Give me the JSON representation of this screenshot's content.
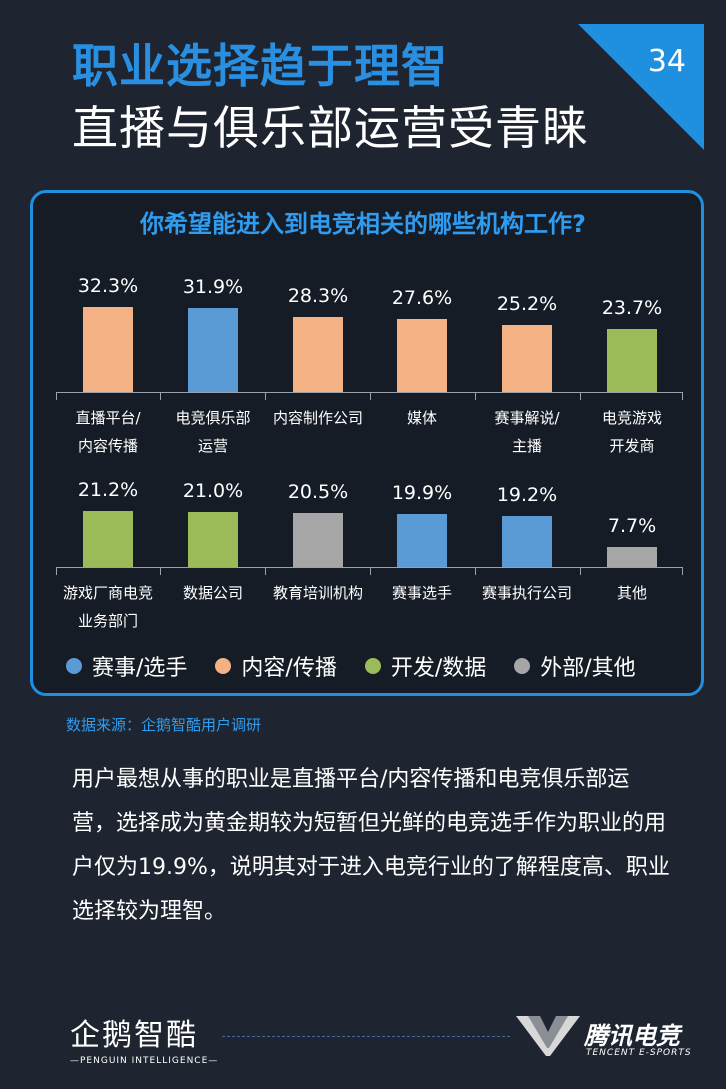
{
  "header": {
    "title_line1": "职业选择趋于理智",
    "title_line2": "直播与俱乐部运营受青睐",
    "page_number": "34"
  },
  "chart_data": {
    "type": "bar",
    "title": "你希望能进入到电竞相关的哪些机构工作?",
    "unit": "%",
    "rows": [
      [
        {
          "label": [
            "直播平台/",
            "内容传播"
          ],
          "value": 32.3,
          "display": "32.3%",
          "group": "内容/传播"
        },
        {
          "label": [
            "电竞俱乐部",
            "运营"
          ],
          "value": 31.9,
          "display": "31.9%",
          "group": "赛事/选手"
        },
        {
          "label": [
            "内容制作公司"
          ],
          "value": 28.3,
          "display": "28.3%",
          "group": "内容/传播"
        },
        {
          "label": [
            "媒体"
          ],
          "value": 27.6,
          "display": "27.6%",
          "group": "内容/传播"
        },
        {
          "label": [
            "赛事解说/",
            "主播"
          ],
          "value": 25.2,
          "display": "25.2%",
          "group": "内容/传播"
        },
        {
          "label": [
            "电竞游戏",
            "开发商"
          ],
          "value": 23.7,
          "display": "23.7%",
          "group": "开发/数据"
        }
      ],
      [
        {
          "label": [
            "游戏厂商电竞",
            "业务部门"
          ],
          "value": 21.2,
          "display": "21.2%",
          "group": "开发/数据"
        },
        {
          "label": [
            "数据公司"
          ],
          "value": 21.0,
          "display": "21.0%",
          "group": "开发/数据"
        },
        {
          "label": [
            "教育培训机构"
          ],
          "value": 20.5,
          "display": "20.5%",
          "group": "外部/其他"
        },
        {
          "label": [
            "赛事选手"
          ],
          "value": 19.9,
          "display": "19.9%",
          "group": "赛事/选手"
        },
        {
          "label": [
            "赛事执行公司"
          ],
          "value": 19.2,
          "display": "19.2%",
          "group": "赛事/选手"
        },
        {
          "label": [
            "其他"
          ],
          "value": 7.7,
          "display": "7.7%",
          "group": "外部/其他"
        }
      ]
    ],
    "legend": [
      {
        "name": "赛事/选手",
        "color": "#5b9bd5"
      },
      {
        "name": "内容/传播",
        "color": "#f4b183"
      },
      {
        "name": "开发/数据",
        "color": "#9bbb59"
      },
      {
        "name": "外部/其他",
        "color": "#a6a6a6"
      }
    ],
    "legend_position": "bottom"
  },
  "source": "数据来源：企鹅智酷用户调研",
  "body": "用户最想从事的职业是直播平台/内容传播和电竞俱乐部运营，选择成为黄金期较为短暂但光鲜的电竞选手作为职业的用户仅为19.9%，说明其对于进入电竞行业的了解程度高、职业选择较为理智。",
  "footer": {
    "left_logo_cn": "企鹅智酷",
    "left_logo_en": "—PENGUIN INTELLIGENCE—",
    "right_logo_cn": "腾讯电竞",
    "right_logo_en": "TENCENT E-SPORTS"
  }
}
